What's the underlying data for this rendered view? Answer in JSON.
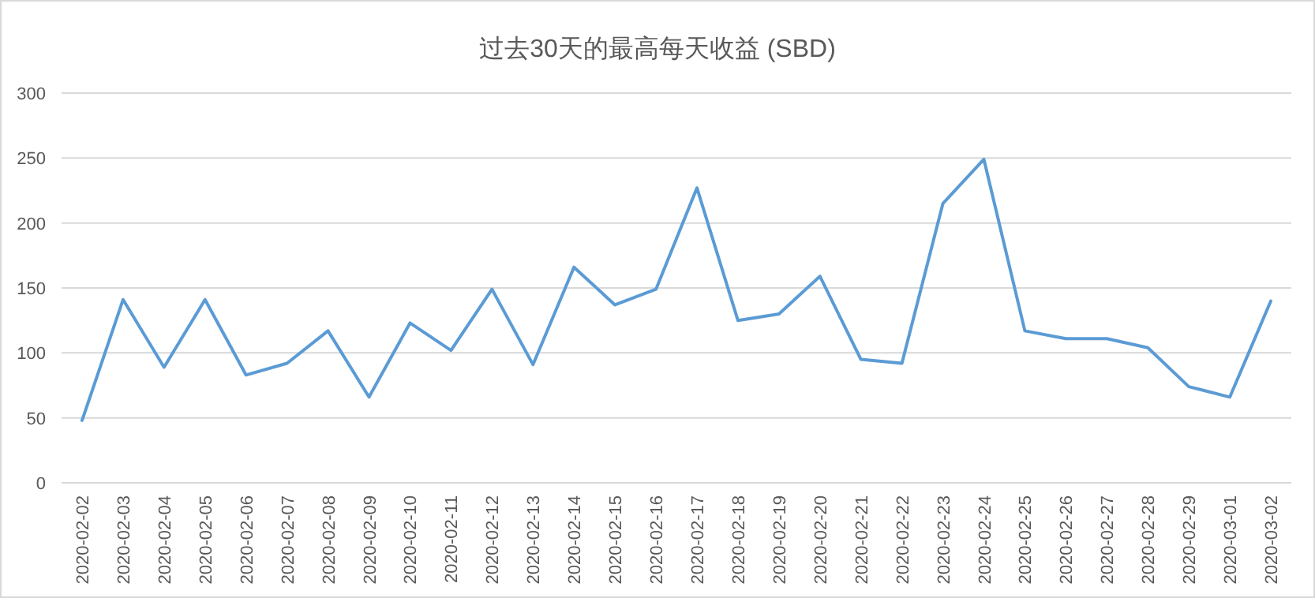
{
  "chart_data": {
    "type": "line",
    "title": "过去30天的最高每天收益 (SBD)",
    "categories": [
      "2020-02-02",
      "2020-02-03",
      "2020-02-04",
      "2020-02-05",
      "2020-02-06",
      "2020-02-07",
      "2020-02-08",
      "2020-02-09",
      "2020-02-10",
      "2020-02-11",
      "2020-02-12",
      "2020-02-13",
      "2020-02-14",
      "2020-02-15",
      "2020-02-16",
      "2020-02-17",
      "2020-02-18",
      "2020-02-19",
      "2020-02-20",
      "2020-02-21",
      "2020-02-22",
      "2020-02-23",
      "2020-02-24",
      "2020-02-25",
      "2020-02-26",
      "2020-02-27",
      "2020-02-28",
      "2020-02-29",
      "2020-03-01",
      "2020-03-02"
    ],
    "series": [
      {
        "color": "#5b9bd5",
        "values": [
          48,
          141,
          89,
          141,
          83,
          92,
          117,
          66,
          123,
          102,
          149,
          91,
          166,
          137,
          149,
          227,
          125,
          130,
          159,
          95,
          92,
          215,
          249,
          117,
          111,
          111,
          104,
          74,
          66,
          140
        ]
      }
    ],
    "ylim": [
      0,
      300
    ],
    "yticks": [
      0,
      50,
      100,
      150,
      200,
      250,
      300
    ],
    "grid": "y",
    "marker": "none",
    "line_style": "solid"
  }
}
